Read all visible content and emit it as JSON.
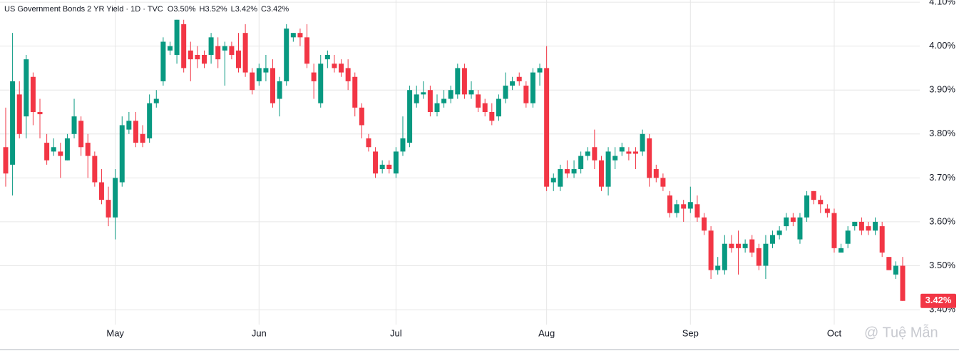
{
  "chart_data": {
    "type": "candlestick",
    "title": "US Government Bonds 2 YR Yield · 1D · TVC",
    "ohlc_keys": [
      "O",
      "H",
      "L",
      "C"
    ],
    "ohlc_labels": [
      "3.50%",
      "3.52%",
      "3.42%",
      "3.42%"
    ],
    "last_price_label": "3.42%",
    "watermark": "@ Tuệ Mẫn",
    "up_color": "#089981",
    "down_color": "#f23645",
    "grid": true,
    "ylim": [
      3.366,
      4.105
    ],
    "yticks": [
      {
        "value": 3.4,
        "label": "3.40%"
      },
      {
        "value": 3.5,
        "label": "3.50%"
      },
      {
        "value": 3.6,
        "label": "3.60%"
      },
      {
        "value": 3.7,
        "label": "3.70%"
      },
      {
        "value": 3.8,
        "label": "3.80%"
      },
      {
        "value": 3.9,
        "label": "3.90%"
      },
      {
        "value": 4.0,
        "label": "4.00%"
      },
      {
        "value": 4.1,
        "label": "4.10%"
      }
    ],
    "categories": [
      null,
      null,
      null,
      null,
      null,
      null,
      null,
      null,
      null,
      null,
      null,
      null,
      null,
      null,
      null,
      null,
      "May",
      null,
      null,
      null,
      null,
      null,
      null,
      null,
      null,
      null,
      null,
      null,
      null,
      null,
      null,
      null,
      null,
      null,
      null,
      null,
      null,
      "Jun",
      null,
      null,
      null,
      null,
      null,
      null,
      null,
      null,
      null,
      null,
      null,
      null,
      null,
      null,
      null,
      null,
      null,
      null,
      null,
      "Jul",
      null,
      null,
      null,
      null,
      null,
      null,
      null,
      null,
      null,
      null,
      null,
      null,
      null,
      null,
      null,
      null,
      null,
      null,
      null,
      null,
      null,
      "Aug",
      null,
      null,
      null,
      null,
      null,
      null,
      null,
      null,
      null,
      null,
      null,
      null,
      null,
      null,
      null,
      null,
      null,
      null,
      null,
      null,
      "Sep",
      null,
      null,
      null,
      null,
      null,
      null,
      null,
      null,
      null,
      null,
      null,
      null,
      null,
      null,
      null,
      null,
      null,
      null,
      null,
      null,
      "Oct",
      null,
      null,
      null,
      null,
      null,
      null,
      null,
      null,
      null,
      null
    ],
    "open": [
      3.77,
      3.73,
      3.89,
      3.84,
      3.93,
      3.85,
      3.78,
      3.76,
      3.76,
      3.74,
      3.8,
      3.83,
      3.78,
      3.75,
      3.69,
      3.65,
      3.61,
      3.69,
      3.81,
      3.83,
      3.8,
      3.79,
      3.87,
      3.92,
      3.99,
      3.98,
      4.05,
      3.99,
      3.98,
      3.98,
      3.98,
      4.0,
      3.99,
      4.0,
      3.99,
      4.03,
      3.94,
      3.92,
      3.94,
      3.95,
      3.88,
      3.92,
      4.02,
      4.03,
      4.02,
      3.94,
      3.87,
      3.97,
      3.96,
      3.96,
      3.95,
      3.93,
      3.86,
      3.79,
      3.76,
      3.72,
      3.73,
      3.71,
      3.76,
      3.78,
      3.87,
      3.89,
      3.9,
      3.85,
      3.87,
      3.88,
      3.89,
      3.95,
      3.89,
      3.89,
      3.87,
      3.85,
      3.84,
      3.88,
      3.91,
      3.93,
      3.91,
      3.87,
      3.94,
      3.95,
      3.69,
      3.68,
      3.72,
      3.71,
      3.72,
      3.75,
      3.77,
      3.74,
      3.68,
      3.74,
      3.76,
      3.76,
      3.76,
      3.76,
      3.79,
      3.72,
      3.7,
      3.66,
      3.62,
      3.64,
      3.63,
      3.64,
      3.61,
      3.58,
      3.49,
      3.49,
      3.55,
      3.55,
      3.54,
      3.56,
      3.54,
      3.5,
      3.55,
      3.57,
      3.59,
      3.61,
      3.56,
      3.61,
      3.67,
      3.65,
      3.63,
      3.62,
      3.53,
      3.55,
      3.59,
      3.6,
      3.59,
      3.58,
      3.59,
      3.52,
      3.48,
      3.5
    ],
    "high": [
      3.86,
      4.03,
      3.92,
      3.98,
      3.94,
      3.88,
      3.8,
      3.79,
      3.78,
      3.8,
      3.88,
      3.84,
      3.8,
      3.76,
      3.72,
      3.68,
      3.72,
      3.84,
      3.85,
      3.85,
      3.82,
      3.89,
      3.9,
      4.02,
      4.01,
      4.06,
      4.06,
      4.01,
      4.0,
      3.99,
      4.03,
      4.02,
      4.01,
      4.01,
      4.03,
      4.05,
      3.95,
      3.96,
      3.98,
      3.97,
      3.93,
      4.05,
      4.03,
      4.04,
      4.05,
      3.96,
      3.98,
      3.99,
      3.98,
      3.97,
      3.97,
      3.94,
      3.87,
      3.8,
      3.77,
      3.74,
      3.74,
      3.77,
      3.84,
      3.91,
      3.91,
      3.92,
      3.91,
      3.89,
      3.9,
      3.91,
      3.96,
      3.96,
      3.92,
      3.9,
      3.88,
      3.87,
      3.89,
      3.94,
      3.93,
      3.94,
      3.92,
      3.95,
      3.96,
      4.0,
      3.71,
      3.73,
      3.74,
      3.74,
      3.76,
      3.77,
      3.81,
      3.75,
      3.77,
      3.77,
      3.78,
      3.77,
      3.77,
      3.81,
      3.8,
      3.73,
      3.71,
      3.67,
      3.65,
      3.65,
      3.68,
      3.66,
      3.62,
      3.59,
      3.52,
      3.57,
      3.57,
      3.58,
      3.56,
      3.57,
      3.55,
      3.57,
      3.58,
      3.59,
      3.62,
      3.62,
      3.62,
      3.67,
      3.67,
      3.66,
      3.64,
      3.63,
      3.55,
      3.59,
      3.6,
      3.61,
      3.6,
      3.61,
      3.6,
      3.52,
      3.51,
      3.52
    ],
    "low": [
      3.68,
      3.66,
      3.79,
      3.79,
      3.82,
      3.79,
      3.73,
      3.75,
      3.7,
      3.74,
      3.79,
      3.75,
      3.7,
      3.68,
      3.64,
      3.59,
      3.56,
      3.68,
      3.8,
      3.77,
      3.77,
      3.78,
      3.86,
      3.91,
      3.98,
      3.96,
      3.94,
      3.92,
      3.95,
      3.95,
      3.96,
      3.95,
      3.91,
      3.97,
      3.94,
      3.93,
      3.89,
      3.91,
      3.92,
      3.86,
      3.84,
      3.91,
      4.01,
      4.0,
      3.95,
      3.88,
      3.86,
      3.95,
      3.94,
      3.93,
      3.9,
      3.84,
      3.79,
      3.76,
      3.7,
      3.71,
      3.71,
      3.7,
      3.75,
      3.77,
      3.86,
      3.88,
      3.84,
      3.84,
      3.86,
      3.87,
      3.88,
      3.88,
      3.88,
      3.85,
      3.84,
      3.82,
      3.83,
      3.87,
      3.9,
      3.91,
      3.86,
      3.86,
      3.91,
      3.67,
      3.67,
      3.67,
      3.7,
      3.7,
      3.71,
      3.74,
      3.72,
      3.67,
      3.66,
      3.72,
      3.75,
      3.74,
      3.72,
      3.75,
      3.68,
      3.69,
      3.67,
      3.61,
      3.61,
      3.6,
      3.62,
      3.6,
      3.57,
      3.47,
      3.48,
      3.48,
      3.53,
      3.48,
      3.53,
      3.52,
      3.49,
      3.47,
      3.54,
      3.56,
      3.58,
      3.59,
      3.55,
      3.6,
      3.64,
      3.62,
      3.61,
      3.53,
      3.53,
      3.54,
      3.58,
      3.57,
      3.57,
      3.57,
      3.52,
      3.49,
      3.47,
      3.42
    ],
    "close": [
      3.71,
      3.92,
      3.8,
      3.97,
      3.85,
      3.845,
      3.74,
      3.77,
      3.75,
      3.79,
      3.84,
      3.77,
      3.75,
      3.69,
      3.65,
      3.61,
      3.7,
      3.82,
      3.83,
      3.78,
      3.78,
      3.87,
      3.88,
      4.01,
      4.0,
      4.06,
      3.95,
      3.97,
      3.97,
      3.96,
      4.02,
      3.97,
      4.0,
      3.98,
      3.95,
      3.94,
      3.9,
      3.95,
      3.95,
      3.87,
      3.92,
      4.04,
      4.03,
      4.02,
      3.96,
      3.92,
      3.96,
      3.98,
      3.95,
      3.94,
      3.92,
      3.86,
      3.82,
      3.77,
      3.71,
      3.73,
      3.72,
      3.76,
      3.79,
      3.9,
      3.89,
      3.895,
      3.85,
      3.87,
      3.88,
      3.9,
      3.95,
      3.89,
      3.9,
      3.86,
      3.85,
      3.83,
      3.88,
      3.91,
      3.92,
      3.92,
      3.87,
      3.94,
      3.95,
      3.68,
      3.7,
      3.72,
      3.71,
      3.72,
      3.75,
      3.76,
      3.74,
      3.68,
      3.76,
      3.75,
      3.77,
      3.755,
      3.755,
      3.8,
      3.7,
      3.7,
      3.68,
      3.62,
      3.64,
      3.63,
      3.645,
      3.61,
      3.58,
      3.49,
      3.5,
      3.55,
      3.54,
      3.54,
      3.55,
      3.53,
      3.5,
      3.55,
      3.57,
      3.58,
      3.61,
      3.6,
      3.61,
      3.66,
      3.65,
      3.64,
      3.62,
      3.54,
      3.54,
      3.58,
      3.6,
      3.58,
      3.58,
      3.6,
      3.53,
      3.49,
      3.5,
      3.42
    ]
  }
}
